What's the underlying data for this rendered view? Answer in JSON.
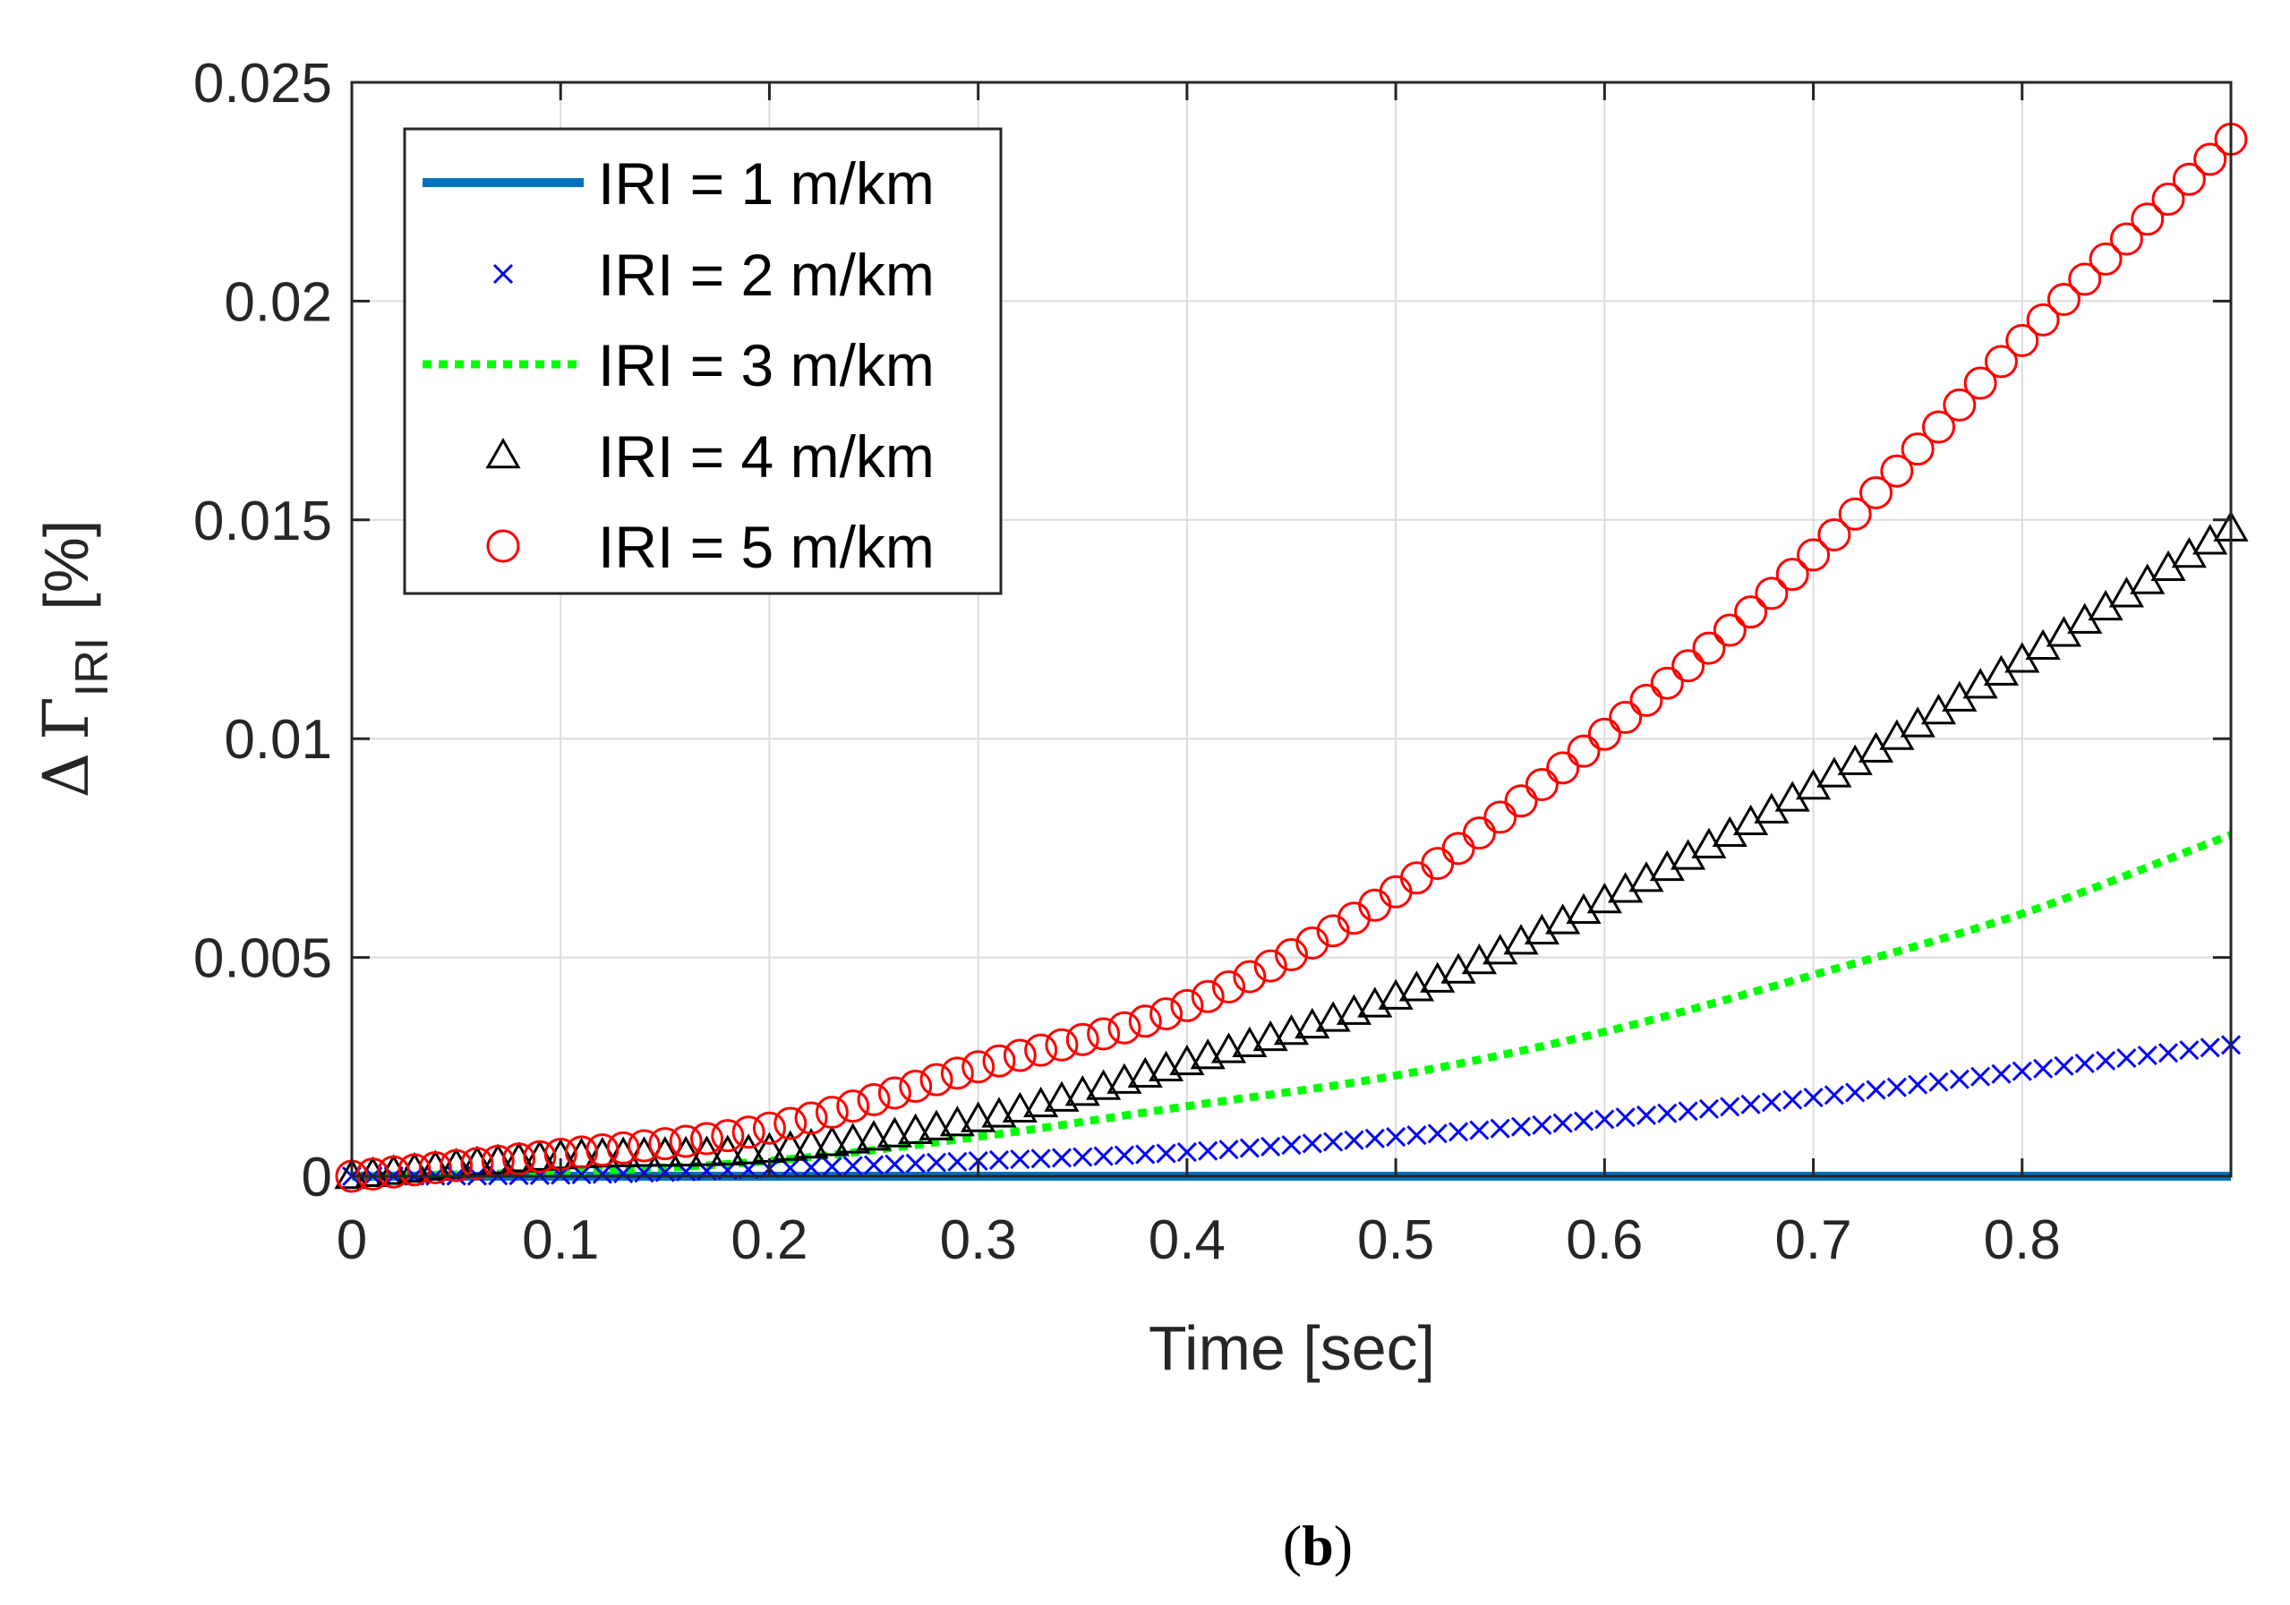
{
  "chart_data": {
    "type": "line",
    "title": "",
    "xlabel": "Time [sec]",
    "ylabel": {
      "delta": "Δ",
      "symbol": "Γ",
      "subscript": "IRI",
      "unit": "[%]"
    },
    "xlim": [
      0,
      0.9
    ],
    "ylim": [
      0,
      0.025
    ],
    "x_ticks": [
      0,
      0.1,
      0.2,
      0.3,
      0.4,
      0.5,
      0.6,
      0.7,
      0.8
    ],
    "x_tick_labels": [
      "0",
      "0.1",
      "0.2",
      "0.3",
      "0.4",
      "0.5",
      "0.6",
      "0.7",
      "0.8"
    ],
    "y_ticks": [
      0,
      0.005,
      0.01,
      0.015,
      0.02,
      0.025
    ],
    "y_tick_labels": [
      "0",
      "0.005",
      "0.01",
      "0.015",
      "0.02",
      "0.025"
    ],
    "grid": true,
    "legend_position": "top-left",
    "x": [
      0,
      0.1,
      0.2,
      0.3,
      0.4,
      0.5,
      0.6,
      0.7,
      0.8,
      0.9
    ],
    "series": [
      {
        "name": "IRI = 1 m/km",
        "style": "solid",
        "marker": "none",
        "color": "#0072BD",
        "values": [
          0,
          0,
          0,
          0,
          0,
          0,
          0,
          0,
          0,
          0
        ]
      },
      {
        "name": "IRI = 2 m/km",
        "style": "none",
        "marker": "x",
        "color": "#0000FF",
        "values": [
          0,
          3e-05,
          0.00017,
          0.00035,
          0.00055,
          0.0009,
          0.0013,
          0.0018,
          0.0024,
          0.003
        ]
      },
      {
        "name": "IRI = 3 m/km",
        "style": "dotted",
        "marker": "none",
        "color": "#00FF00",
        "values": [
          0,
          0.0001,
          0.00035,
          0.0009,
          0.0016,
          0.0023,
          0.0033,
          0.0046,
          0.006,
          0.0078
        ]
      },
      {
        "name": "IRI = 4 m/km",
        "style": "none",
        "marker": "triangle",
        "color": "#000000",
        "values": [
          0,
          0.00045,
          0.0006,
          0.0013,
          0.0026,
          0.0041,
          0.0063,
          0.0089,
          0.0118,
          0.0148
        ]
      },
      {
        "name": "IRI = 5 m/km",
        "style": "none",
        "marker": "circle",
        "color": "#FF0000",
        "values": [
          0,
          0.0005,
          0.0011,
          0.0025,
          0.0039,
          0.0065,
          0.0101,
          0.0142,
          0.0191,
          0.0237
        ]
      }
    ]
  },
  "caption": {
    "open": "(",
    "letter": "b",
    "close": ")"
  }
}
